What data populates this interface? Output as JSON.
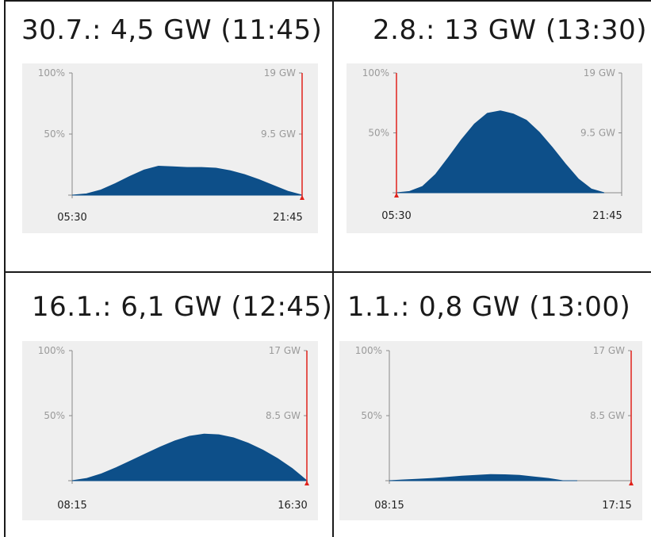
{
  "charts": [
    {
      "title": "30.7.: 4,5 GW (11:45)"
    },
    {
      "title": "2.8.: 13 GW (13:30)"
    },
    {
      "title": "16.1.: 6,1 GW (12:45)"
    },
    {
      "title": "1.1.: 0,8 GW (13:00)"
    }
  ],
  "colors": {
    "fill": "#0d4f89",
    "axis": "#8a8a8a",
    "marker": "#e0221b",
    "panel_bg": "#efefef"
  },
  "chart_data": [
    {
      "type": "area",
      "title": "30.7.: 4,5 GW (11:45)",
      "x": [
        "05:30",
        "06:30",
        "07:30",
        "08:30",
        "09:30",
        "10:30",
        "11:45",
        "12:30",
        "13:30",
        "14:30",
        "15:30",
        "16:30",
        "17:30",
        "18:30",
        "19:30",
        "20:30",
        "21:45"
      ],
      "values": [
        0.0,
        0.2,
        0.8,
        1.8,
        2.9,
        3.9,
        4.5,
        4.4,
        4.3,
        4.3,
        4.2,
        3.8,
        3.2,
        2.4,
        1.5,
        0.6,
        0.0
      ],
      "series": [
        {
          "values": [
            0.0,
            0.2,
            0.8,
            1.8,
            2.9,
            3.9,
            4.5,
            4.4,
            4.3,
            4.3,
            4.2,
            3.8,
            3.2,
            2.4,
            1.5,
            0.6,
            0.0
          ]
        }
      ],
      "x_start": "05:30",
      "x_end": "21:45",
      "y_left_ticks": [
        "100%",
        "50%"
      ],
      "y_right_ticks": [
        "19 GW",
        "9.5 GW"
      ],
      "ylim": [
        0,
        19
      ],
      "marker_position": "end",
      "grid": false
    },
    {
      "type": "area",
      "title": "2.8.: 13 GW (13:30)",
      "x": [
        "05:30",
        "06:30",
        "07:30",
        "08:30",
        "09:30",
        "10:30",
        "11:30",
        "12:30",
        "13:30",
        "14:30",
        "15:30",
        "16:30",
        "17:30",
        "18:30",
        "19:30",
        "20:30",
        "21:45"
      ],
      "values": [
        0.0,
        0.2,
        1.0,
        2.9,
        5.6,
        8.4,
        10.9,
        12.6,
        13.0,
        12.5,
        11.5,
        9.6,
        7.2,
        4.6,
        2.2,
        0.6,
        0.0
      ],
      "series": [
        {
          "values": [
            0.0,
            0.2,
            1.0,
            2.9,
            5.6,
            8.4,
            10.9,
            12.6,
            13.0,
            12.5,
            11.5,
            9.6,
            7.2,
            4.6,
            2.2,
            0.6,
            0.0
          ]
        }
      ],
      "x_start": "05:30",
      "x_end": "21:45",
      "y_left_ticks": [
        "100%",
        "50%"
      ],
      "y_right_ticks": [
        "19 GW",
        "9.5 GW"
      ],
      "ylim": [
        0,
        19
      ],
      "marker_position": "start",
      "grid": false
    },
    {
      "type": "area",
      "title": "16.1.: 6,1 GW (12:45)",
      "x": [
        "08:15",
        "08:45",
        "09:15",
        "09:45",
        "10:15",
        "10:45",
        "11:15",
        "11:45",
        "12:15",
        "12:45",
        "13:15",
        "13:45",
        "14:15",
        "14:45",
        "15:15",
        "15:45",
        "16:30"
      ],
      "values": [
        0.0,
        0.3,
        0.9,
        1.7,
        2.6,
        3.5,
        4.4,
        5.2,
        5.8,
        6.1,
        6.0,
        5.6,
        4.9,
        4.0,
        2.9,
        1.6,
        0.0
      ],
      "series": [
        {
          "values": [
            0.0,
            0.3,
            0.9,
            1.7,
            2.6,
            3.5,
            4.4,
            5.2,
            5.8,
            6.1,
            6.0,
            5.6,
            4.9,
            4.0,
            2.9,
            1.6,
            0.0
          ]
        }
      ],
      "x_start": "08:15",
      "x_end": "16:30",
      "y_left_ticks": [
        "100%",
        "50%"
      ],
      "y_right_ticks": [
        "17 GW",
        "8.5 GW"
      ],
      "ylim": [
        0,
        17
      ],
      "marker_position": "end",
      "grid": false
    },
    {
      "type": "area",
      "title": "1.1.: 0,8 GW (13:00)",
      "x": [
        "08:15",
        "09:00",
        "09:45",
        "10:30",
        "11:15",
        "12:00",
        "12:30",
        "13:00",
        "13:30",
        "14:00",
        "14:45",
        "15:30",
        "16:15",
        "17:15"
      ],
      "values": [
        0.0,
        0.1,
        0.2,
        0.3,
        0.45,
        0.6,
        0.7,
        0.8,
        0.78,
        0.7,
        0.5,
        0.3,
        0.0,
        0.0
      ],
      "series": [
        {
          "values": [
            0.0,
            0.1,
            0.2,
            0.3,
            0.45,
            0.6,
            0.7,
            0.8,
            0.78,
            0.7,
            0.5,
            0.3,
            0.0,
            0.0
          ]
        }
      ],
      "x_start": "08:15",
      "x_end": "17:15",
      "y_left_ticks": [
        "100%",
        "50%"
      ],
      "y_right_ticks": [
        "17 GW",
        "8.5 GW"
      ],
      "ylim": [
        0,
        17
      ],
      "marker_position": "end",
      "grid": false
    }
  ]
}
